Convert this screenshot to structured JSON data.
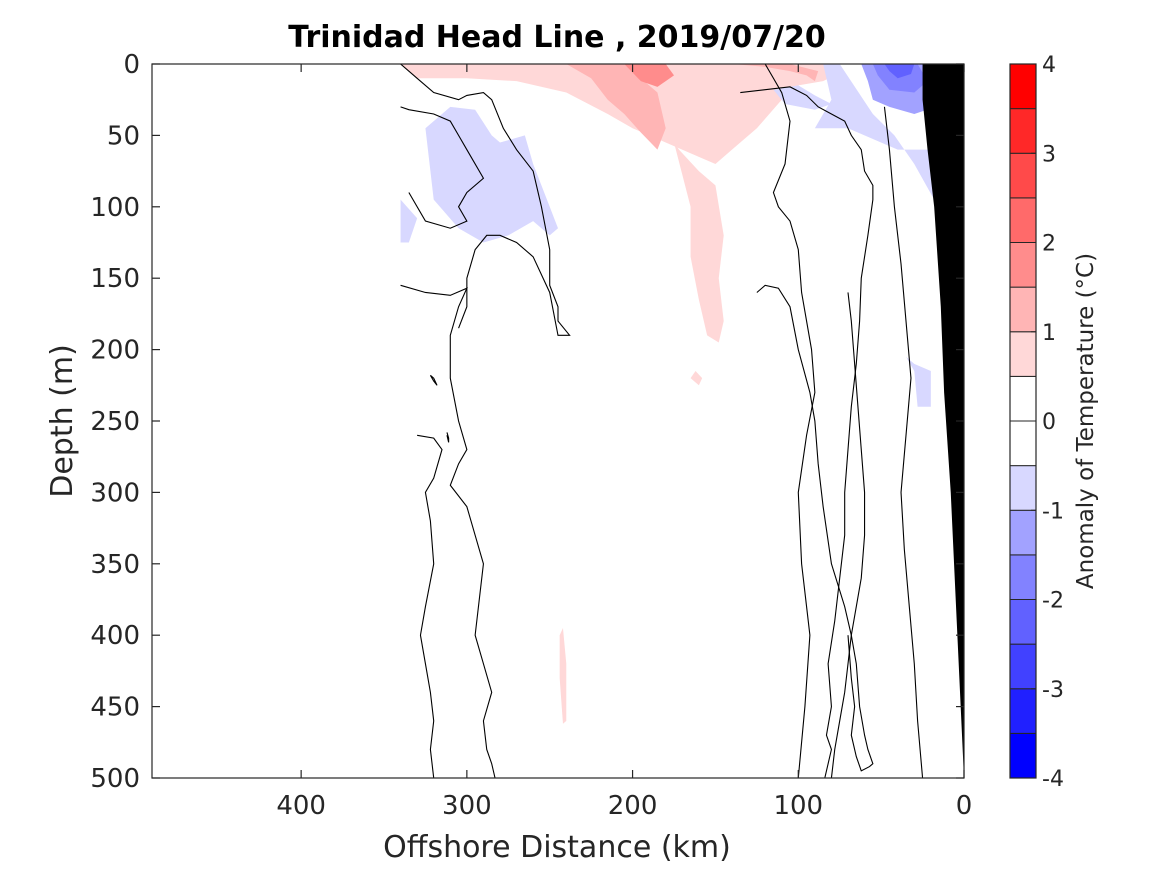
{
  "chart_data": {
    "type": "heatmap",
    "subtype": "filled-contour section",
    "title": "Trinidad Head Line , 2019/07/20",
    "xlabel": "Offshore Distance (km)",
    "ylabel": "Depth (m)",
    "xlim": [
      490,
      0
    ],
    "x_reversed": true,
    "x_ticks": [
      400,
      300,
      200,
      100,
      0
    ],
    "ylim": [
      0,
      500
    ],
    "y_reversed": true,
    "y_ticks": [
      0,
      50,
      100,
      150,
      200,
      250,
      300,
      350,
      400,
      450,
      500
    ],
    "colorbar": {
      "label": "Anomaly of Temperature (°C)",
      "range": [
        -4,
        4
      ],
      "ticks": [
        -4,
        -3,
        -2,
        -1,
        0,
        1,
        2,
        3,
        4
      ],
      "levels": [
        {
          "from": -4.0,
          "to": -3.5,
          "color": "#0000ff"
        },
        {
          "from": -3.5,
          "to": -3.0,
          "color": "#2020ff"
        },
        {
          "from": -3.0,
          "to": -2.5,
          "color": "#4141ff"
        },
        {
          "from": -2.5,
          "to": -2.0,
          "color": "#6161ff"
        },
        {
          "from": -2.0,
          "to": -1.5,
          "color": "#8282ff"
        },
        {
          "from": -1.5,
          "to": -1.0,
          "color": "#a2a2ff"
        },
        {
          "from": -1.0,
          "to": -0.5,
          "color": "#d8d8ff"
        },
        {
          "from": -0.5,
          "to": 0.0,
          "color": "#ffffff"
        },
        {
          "from": 0.0,
          "to": 0.5,
          "color": "#ffffff"
        },
        {
          "from": 0.5,
          "to": 1.0,
          "color": "#ffd8d8"
        },
        {
          "from": 1.0,
          "to": 1.5,
          "color": "#ffb5b5"
        },
        {
          "from": 1.5,
          "to": 2.0,
          "color": "#ff8c8c"
        },
        {
          "from": 2.0,
          "to": 2.5,
          "color": "#ff6a6a"
        },
        {
          "from": 2.5,
          "to": 3.0,
          "color": "#ff4a4a"
        },
        {
          "from": 3.0,
          "to": 3.5,
          "color": "#ff2828"
        },
        {
          "from": 3.5,
          "to": 4.0,
          "color": "#ff0000"
        }
      ]
    },
    "regions": [
      {
        "name": "surface warm layer",
        "level": 1,
        "x": [
          340,
          330,
          300,
          270,
          240,
          215,
          200,
          180,
          160,
          150,
          140,
          125,
          110,
          100,
          85,
          78,
          78,
          100,
          130,
          150,
          165,
          185,
          205,
          230,
          260,
          300,
          340
        ],
        "y": [
          0,
          10,
          10,
          12,
          20,
          35,
          45,
          55,
          65,
          70,
          60,
          45,
          25,
          15,
          12,
          8,
          0,
          0,
          0,
          0,
          0,
          0,
          0,
          0,
          0,
          0,
          0
        ]
      },
      {
        "name": "warm tongue",
        "level": 1,
        "x": [
          175,
          165,
          165,
          160,
          155,
          148,
          145,
          148,
          145,
          150,
          160,
          172
        ],
        "y": [
          55,
          100,
          135,
          165,
          190,
          195,
          180,
          150,
          120,
          85,
          75,
          60
        ]
      },
      {
        "name": "surface warm core",
        "level": 2,
        "x": [
          240,
          225,
          215,
          205,
          195,
          185,
          180,
          185,
          205,
          230
        ],
        "y": [
          0,
          10,
          25,
          35,
          48,
          60,
          45,
          20,
          0,
          0
        ]
      },
      {
        "name": "surface warm core east",
        "level": 2,
        "x": [
          140,
          120,
          105,
          95,
          90,
          88,
          105,
          125
        ],
        "y": [
          0,
          2,
          5,
          8,
          12,
          5,
          0,
          0
        ]
      },
      {
        "name": "surface warm max",
        "level": 3,
        "x": [
          205,
          195,
          185,
          175,
          180,
          190
        ],
        "y": [
          0,
          12,
          16,
          8,
          0,
          0
        ]
      },
      {
        "name": "warm spot 220m",
        "level": 1,
        "x": [
          162,
          158,
          160,
          165
        ],
        "y": [
          215,
          220,
          225,
          220
        ]
      },
      {
        "name": "warm filament 400-460m",
        "level": 1,
        "x": [
          242,
          240,
          240,
          242,
          244,
          244
        ],
        "y": [
          395,
          420,
          460,
          462,
          430,
          400
        ]
      },
      {
        "name": "cool patch offshore",
        "level": -1,
        "x": [
          325,
          310,
          295,
          285,
          280,
          265,
          260,
          250,
          245,
          250,
          260,
          275,
          290,
          305,
          320
        ],
        "y": [
          45,
          30,
          32,
          50,
          55,
          50,
          70,
          100,
          115,
          120,
          110,
          120,
          125,
          115,
          95
        ]
      },
      {
        "name": "cool edge west",
        "level": -1,
        "x": [
          340,
          330,
          335,
          340
        ],
        "y": [
          95,
          108,
          125,
          125
        ]
      },
      {
        "name": "cool spot nearshore",
        "level": -1,
        "x": [
          115,
          100,
          90,
          80,
          90,
          108
        ],
        "y": [
          18,
          15,
          22,
          28,
          32,
          28
        ]
      },
      {
        "name": "coastal cold water",
        "level": -1,
        "x": [
          85,
          80,
          90,
          70,
          40,
          15,
          20,
          18,
          30,
          42,
          55,
          75
        ],
        "y": [
          0,
          25,
          45,
          45,
          60,
          60,
          80,
          95,
          70,
          50,
          35,
          0
        ]
      },
      {
        "name": "coastal cold core",
        "level": -2,
        "x": [
          62,
          58,
          55,
          45,
          30,
          12,
          17,
          20,
          35,
          48
        ],
        "y": [
          0,
          12,
          25,
          30,
          35,
          28,
          20,
          0,
          0,
          0
        ]
      },
      {
        "name": "coastal cold center",
        "level": -3,
        "x": [
          55,
          52,
          45,
          30,
          22,
          28,
          40
        ],
        "y": [
          0,
          8,
          18,
          20,
          12,
          0,
          0
        ]
      },
      {
        "name": "coastal cold max",
        "level": -4,
        "x": [
          48,
          45,
          40,
          32,
          30,
          36
        ],
        "y": [
          0,
          5,
          10,
          7,
          0,
          0
        ]
      },
      {
        "name": "cool patch 200-240m",
        "level": -1,
        "x": [
          35,
          30,
          28,
          20,
          20,
          30
        ],
        "y": [
          205,
          215,
          240,
          240,
          215,
          210
        ]
      }
    ],
    "zero_contours": [
      {
        "x": [
          340,
          330,
          320,
          305,
          300,
          290,
          285,
          278,
          270,
          260,
          255,
          250,
          250,
          245,
          245,
          238,
          245,
          250,
          260,
          270,
          280,
          288,
          295,
          300,
          300,
          305
        ],
        "y": [
          0,
          10,
          20,
          25,
          22,
          20,
          25,
          45,
          60,
          75,
          100,
          130,
          155,
          170,
          180,
          190,
          190,
          160,
          135,
          125,
          120,
          120,
          130,
          150,
          170,
          185
        ]
      },
      {
        "x": [
          340,
          335,
          320,
          310,
          305,
          300,
          290,
          300,
          305,
          300,
          310,
          325,
          335
        ],
        "y": [
          30,
          32,
          35,
          40,
          50,
          60,
          80,
          90,
          100,
          110,
          115,
          110,
          90
        ]
      },
      {
        "x": [
          340,
          325,
          310,
          300,
          305,
          310,
          310,
          305,
          300,
          305,
          310,
          300,
          295,
          290,
          292,
          295,
          290,
          285,
          290,
          288,
          285,
          283,
          283
        ],
        "y": [
          155,
          160,
          162,
          157,
          170,
          190,
          220,
          250,
          270,
          280,
          295,
          310,
          330,
          350,
          370,
          400,
          420,
          440,
          460,
          480,
          490,
          500,
          500
        ]
      },
      {
        "x": [
          330,
          320,
          315,
          320,
          325,
          322,
          320,
          325,
          328,
          325,
          322,
          320,
          322,
          320
        ],
        "y": [
          260,
          262,
          270,
          290,
          300,
          320,
          350,
          380,
          400,
          420,
          440,
          460,
          480,
          500
        ]
      },
      {
        "x": [
          120,
          115,
          110,
          105,
          108,
          115,
          112,
          105,
          100,
          98,
          92,
          90,
          95,
          100,
          98,
          93,
          96,
          100
        ],
        "y": [
          0,
          10,
          20,
          40,
          70,
          90,
          100,
          110,
          130,
          160,
          200,
          230,
          260,
          300,
          350,
          400,
          450,
          500
        ]
      },
      {
        "x": [
          135,
          120,
          105,
          95,
          88,
          80,
          72,
          68,
          62,
          60,
          55,
          55,
          58,
          62,
          63,
          65,
          68,
          70,
          72,
          72,
          75,
          78,
          82,
          80,
          83,
          80,
          82,
          84
        ],
        "y": [
          20,
          18,
          16,
          22,
          30,
          35,
          40,
          50,
          60,
          75,
          85,
          95,
          120,
          150,
          180,
          210,
          240,
          270,
          300,
          330,
          360,
          390,
          420,
          450,
          470,
          480,
          490,
          500
        ]
      },
      {
        "x": [
          125,
          120,
          112,
          105,
          100,
          93,
          90,
          88,
          85,
          80,
          72,
          68,
          65,
          63,
          60,
          58,
          55,
          57,
          62,
          65,
          68,
          66,
          68,
          70
        ],
        "y": [
          160,
          155,
          157,
          170,
          200,
          230,
          250,
          280,
          310,
          350,
          380,
          400,
          420,
          450,
          470,
          480,
          490,
          492,
          495,
          485,
          470,
          450,
          430,
          400
        ]
      },
      {
        "x": [
          70,
          68,
          66,
          64,
          62,
          60,
          60,
          62,
          65,
          68,
          70,
          72,
          75,
          78,
          80
        ],
        "y": [
          160,
          180,
          210,
          240,
          270,
          300,
          330,
          360,
          380,
          400,
          420,
          440,
          460,
          480,
          500
        ]
      },
      {
        "x": [
          48,
          45,
          42,
          38,
          35,
          32,
          35,
          38,
          36,
          33,
          30,
          28,
          25
        ],
        "y": [
          30,
          60,
          100,
          140,
          180,
          220,
          260,
          300,
          340,
          380,
          420,
          460,
          500
        ]
      },
      {
        "x": [
          322,
          320,
          318,
          320,
          322
        ],
        "y": [
          218,
          222,
          225,
          220,
          218
        ]
      },
      {
        "x": [
          312,
          311,
          311,
          312
        ],
        "y": [
          258,
          262,
          265,
          260
        ]
      }
    ],
    "seafloor": {
      "x": [
        0,
        0,
        4,
        8,
        12,
        14,
        18,
        22,
        25,
        25
      ],
      "y": [
        0,
        500,
        400,
        300,
        230,
        170,
        100,
        60,
        25,
        0
      ]
    },
    "grid": false,
    "colorbar_position": "right"
  }
}
